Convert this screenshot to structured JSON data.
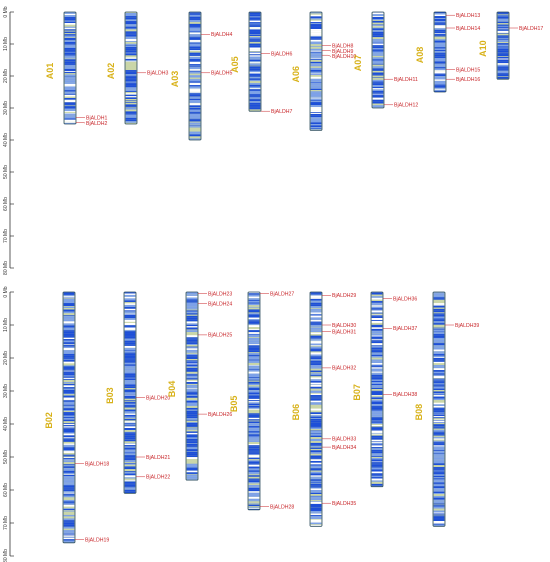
{
  "colors": {
    "label": "#d8b21a",
    "gene": "#c8262a",
    "band_dense": "#1d4fd8",
    "band_mid": "#7da1e8",
    "band_light": "#cad6a8",
    "outline": "#2f4f5f",
    "axis": "#333333"
  },
  "panels": [
    {
      "axis_ticks": [
        "0 Mb",
        "10 Mb",
        "20 Mb",
        "30 Mb",
        "40 Mb",
        "50 Mb",
        "60 Mb",
        "70 Mb",
        "80 Mb"
      ],
      "chromosomes": [
        {
          "name": "A01",
          "length": 35,
          "genes": [
            {
              "name": "BjALDH1",
              "pos": 33
            },
            {
              "name": "BjALDH2",
              "pos": 34.5
            }
          ]
        },
        {
          "name": "A02",
          "length": 35,
          "genes": [
            {
              "name": "BjALDH3",
              "pos": 19
            }
          ]
        },
        {
          "name": "A03",
          "length": 40,
          "genes": [
            {
              "name": "BjALDH4",
              "pos": 7
            },
            {
              "name": "BjALDH5",
              "pos": 19
            }
          ]
        },
        {
          "name": "A05",
          "length": 31,
          "genes": [
            {
              "name": "BjALDH6",
              "pos": 13
            },
            {
              "name": "BjALDH7",
              "pos": 31
            }
          ]
        },
        {
          "name": "A06",
          "length": 37,
          "genes": [
            {
              "name": "BjALDH8",
              "pos": 10.5
            },
            {
              "name": "BjALDH9",
              "pos": 12
            },
            {
              "name": "BjALDH10",
              "pos": 13.5
            }
          ]
        },
        {
          "name": "A07",
          "length": 30,
          "genes": [
            {
              "name": "BjALDH11",
              "pos": 21
            },
            {
              "name": "BjALDH12",
              "pos": 29
            }
          ]
        },
        {
          "name": "A08",
          "length": 25,
          "genes": [
            {
              "name": "BjALDH13",
              "pos": 1
            },
            {
              "name": "BjALDH14",
              "pos": 5
            },
            {
              "name": "BjALDH15",
              "pos": 18
            },
            {
              "name": "BjALDH16",
              "pos": 21
            }
          ]
        },
        {
          "name": "A10",
          "length": 21,
          "genes": [
            {
              "name": "BjALDH17",
              "pos": 5
            }
          ]
        }
      ]
    },
    {
      "axis_ticks": [
        "0 Mb",
        "10 Mb",
        "20 Mb",
        "30 Mb",
        "40 Mb",
        "50 Mb",
        "60 Mb",
        "70 Mb",
        "80 Mb"
      ],
      "chromosomes": [
        {
          "name": "B02",
          "length": 76,
          "genes": [
            {
              "name": "BjALDH18",
              "pos": 52
            },
            {
              "name": "BjALDH19",
              "pos": 75
            }
          ]
        },
        {
          "name": "B03",
          "length": 61,
          "genes": [
            {
              "name": "BjALDH20",
              "pos": 32
            },
            {
              "name": "BjALDH21",
              "pos": 50
            },
            {
              "name": "BjALDH22",
              "pos": 56
            }
          ]
        },
        {
          "name": "B04",
          "length": 57,
          "genes": [
            {
              "name": "BjALDH23",
              "pos": 0.5
            },
            {
              "name": "BjALDH24",
              "pos": 3.5
            },
            {
              "name": "BjALDH25",
              "pos": 13
            },
            {
              "name": "BjALDH26",
              "pos": 37
            }
          ]
        },
        {
          "name": "B05",
          "length": 66,
          "genes": [
            {
              "name": "BjALDH27",
              "pos": 0.5
            },
            {
              "name": "BjALDH28",
              "pos": 65
            }
          ]
        },
        {
          "name": "B06",
          "length": 71,
          "genes": [
            {
              "name": "BjALDH29",
              "pos": 1
            },
            {
              "name": "BjALDH30",
              "pos": 10
            },
            {
              "name": "BjALDH31",
              "pos": 12
            },
            {
              "name": "BjALDH32",
              "pos": 23
            },
            {
              "name": "BjALDH33",
              "pos": 44.5
            },
            {
              "name": "BjALDH34",
              "pos": 47
            },
            {
              "name": "BjALDH35",
              "pos": 64
            }
          ]
        },
        {
          "name": "B07",
          "length": 59,
          "genes": [
            {
              "name": "BjALDH36",
              "pos": 2
            },
            {
              "name": "BjALDH37",
              "pos": 11
            },
            {
              "name": "BjALDH38",
              "pos": 31
            }
          ]
        },
        {
          "name": "B08",
          "length": 71,
          "genes": [
            {
              "name": "BjALDH39",
              "pos": 10
            }
          ]
        }
      ]
    }
  ]
}
